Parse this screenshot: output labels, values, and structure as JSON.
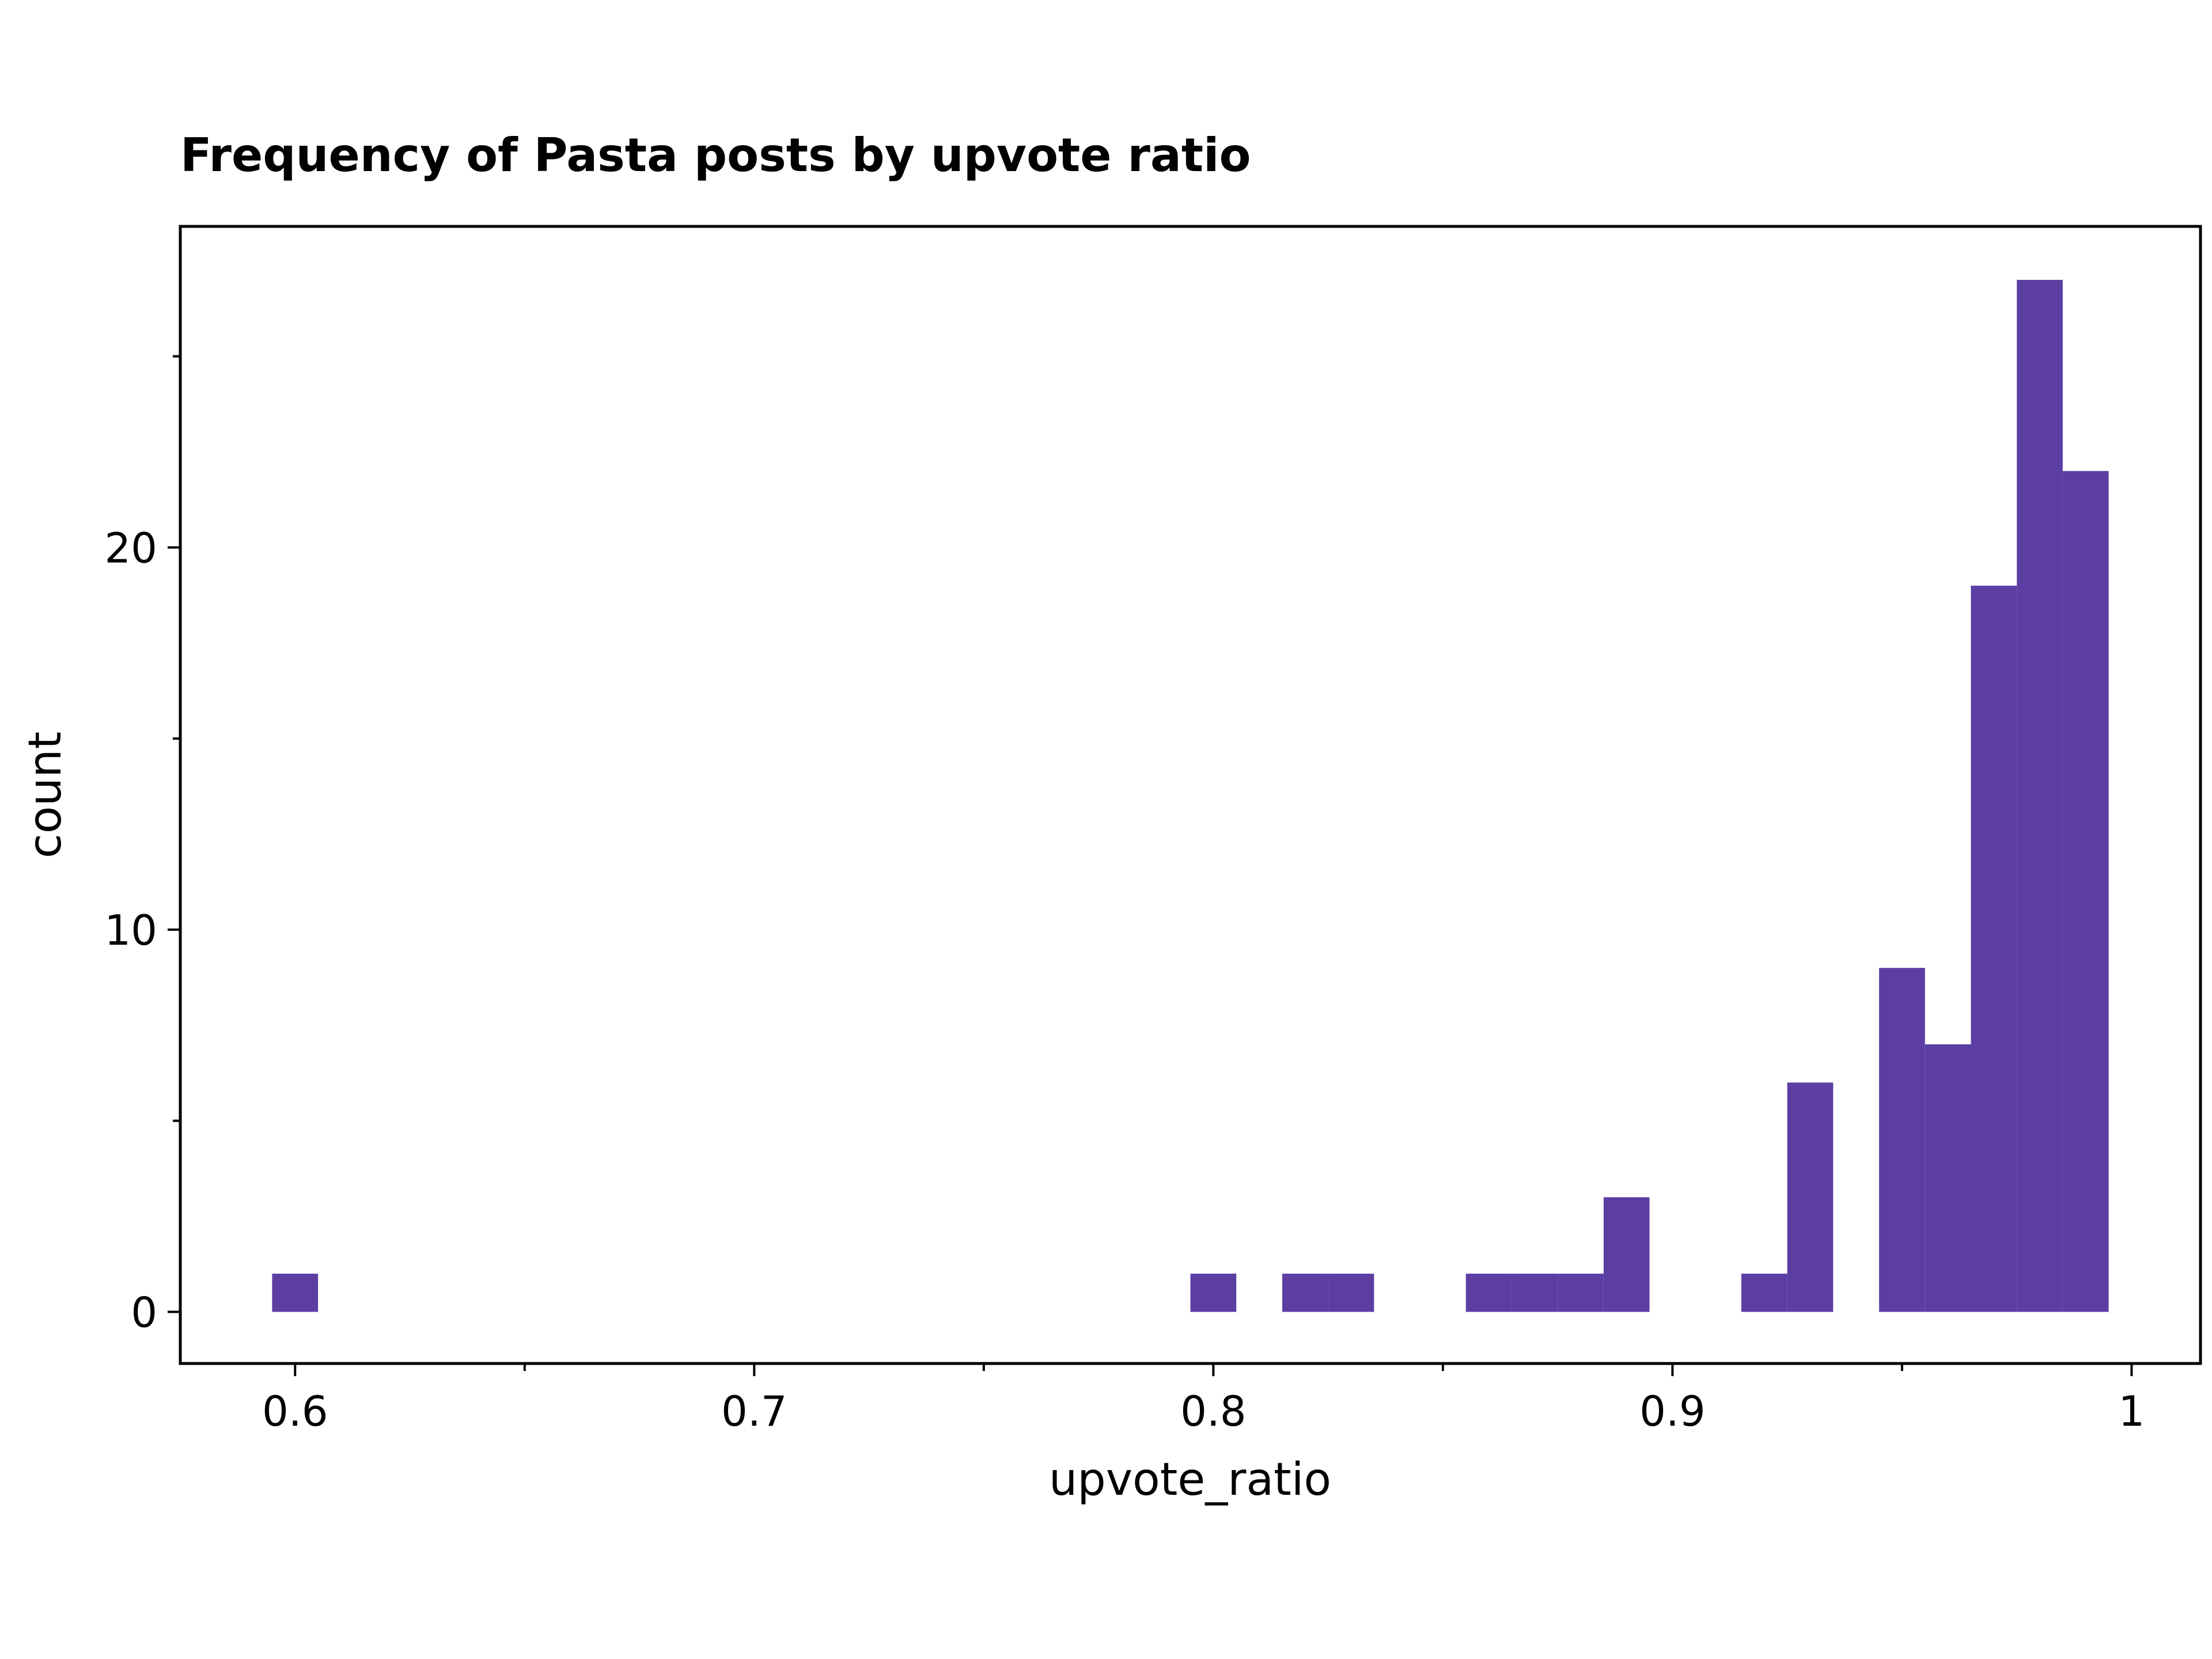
{
  "chart_data": {
    "type": "bar",
    "title": "Frequency of Pasta posts by upvote ratio",
    "xlabel": "upvote_ratio",
    "ylabel": "count",
    "bar_color": "#5c3ea3",
    "bin_width": 0.01,
    "bins": [
      {
        "x": 0.6,
        "count": 1
      },
      {
        "x": 0.8,
        "count": 1
      },
      {
        "x": 0.82,
        "count": 1
      },
      {
        "x": 0.83,
        "count": 1
      },
      {
        "x": 0.86,
        "count": 1
      },
      {
        "x": 0.87,
        "count": 1
      },
      {
        "x": 0.88,
        "count": 1
      },
      {
        "x": 0.89,
        "count": 3
      },
      {
        "x": 0.92,
        "count": 1
      },
      {
        "x": 0.93,
        "count": 6
      },
      {
        "x": 0.95,
        "count": 9
      },
      {
        "x": 0.96,
        "count": 7
      },
      {
        "x": 0.97,
        "count": 19
      },
      {
        "x": 0.98,
        "count": 27
      },
      {
        "x": 0.99,
        "count": 22
      }
    ],
    "xlim": [
      0.575,
      1.015
    ],
    "ylim": [
      -1.35,
      28.4
    ],
    "x_ticks": [
      {
        "value": 0.6,
        "label": "0.6"
      },
      {
        "value": 0.7,
        "label": "0.7"
      },
      {
        "value": 0.8,
        "label": "0.8"
      },
      {
        "value": 0.9,
        "label": "0.9"
      },
      {
        "value": 1.0,
        "label": "1"
      }
    ],
    "x_minor_ticks": [
      0.65,
      0.75,
      0.85,
      0.95
    ],
    "y_ticks": [
      {
        "value": 0,
        "label": "0"
      },
      {
        "value": 10,
        "label": "10"
      },
      {
        "value": 20,
        "label": "20"
      }
    ],
    "y_minor_ticks": [
      5,
      15,
      25
    ],
    "grid": false,
    "legend": "none"
  }
}
